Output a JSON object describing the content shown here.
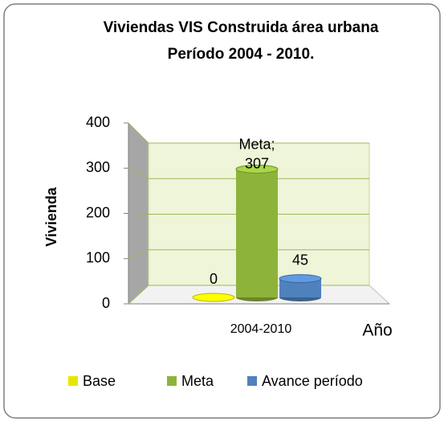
{
  "chart_data": {
    "type": "bar3d",
    "title": [
      "Viviendas VIS Construida  área urbana",
      "Período 2004 - 2010."
    ],
    "y_label": "Vivienda",
    "x_label": "Año",
    "categories": [
      "2004-2010"
    ],
    "series": [
      {
        "name": "Base",
        "color": "#e6e600",
        "values": [
          0
        ]
      },
      {
        "name": "Meta",
        "color": "#8db33a",
        "values": [
          307
        ],
        "value_labels": [
          "Meta; 307"
        ]
      },
      {
        "name": "Avance período",
        "color": "#4f81bd",
        "values": [
          45
        ]
      }
    ],
    "ylim": [
      0,
      400
    ],
    "yticks": [
      0,
      100,
      200,
      300,
      400
    ],
    "grid": true,
    "legend": "bottom"
  }
}
